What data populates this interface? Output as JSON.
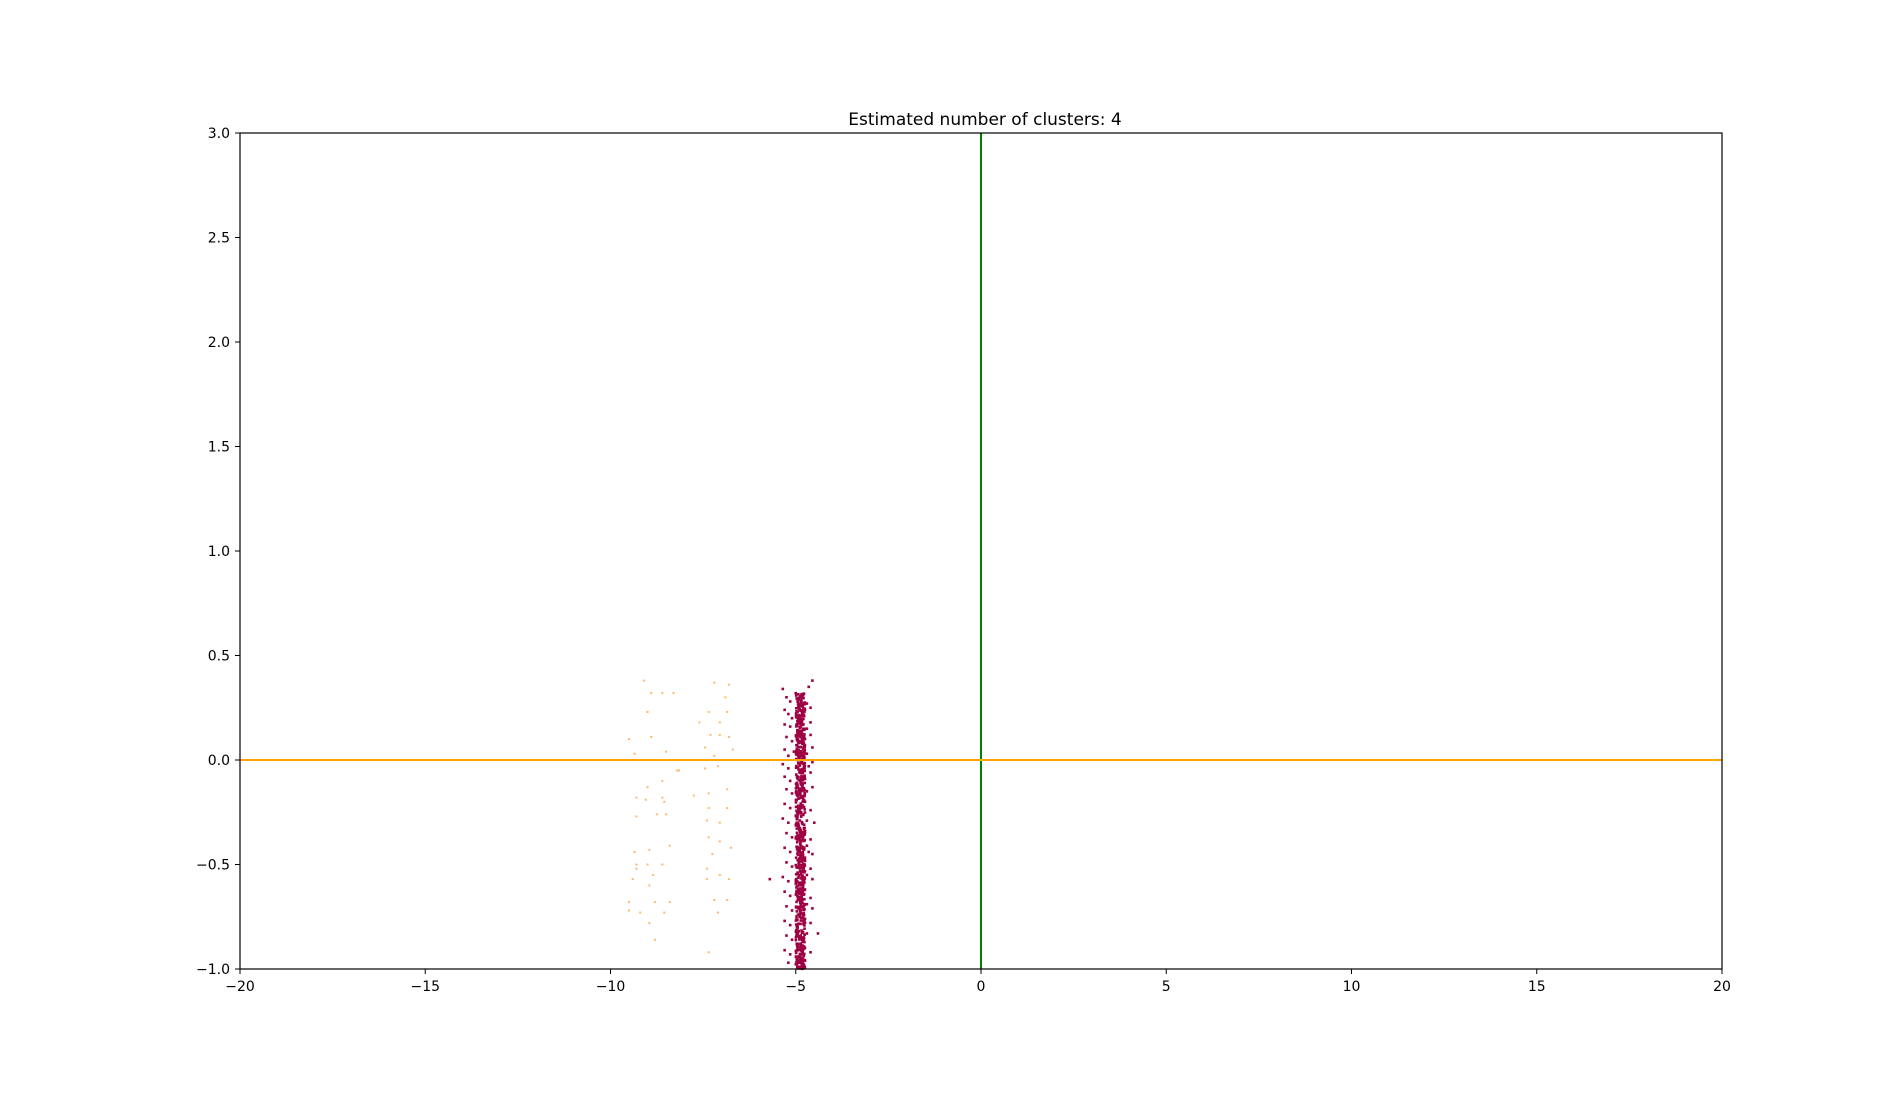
{
  "chart_data": {
    "type": "scatter",
    "title": "Estimated number of clusters: 4",
    "xlabel": "",
    "ylabel": "",
    "xlim": [
      -20,
      20
    ],
    "ylim": [
      -1.0,
      3.0
    ],
    "grid": false,
    "legend": "none",
    "xticks": [
      -20,
      -15,
      -10,
      -5,
      0,
      5,
      10,
      15,
      20
    ],
    "xtick_labels": [
      "−20",
      "−15",
      "−10",
      "−5",
      "0",
      "5",
      "10",
      "15",
      "20"
    ],
    "yticks": [
      -1.0,
      -0.5,
      0.0,
      0.5,
      1.0,
      1.5,
      2.0,
      2.5,
      3.0
    ],
    "ytick_labels": [
      "−1.0",
      "−0.5",
      "0.0",
      "0.5",
      "1.0",
      "1.5",
      "2.0",
      "2.5",
      "3.0"
    ],
    "reference_lines": [
      {
        "orientation": "vertical",
        "x": 0,
        "color": "#008000"
      },
      {
        "orientation": "horizontal",
        "y": 0,
        "color": "#ffa500"
      }
    ],
    "series": [
      {
        "color": "#ffb86b",
        "points": [
          [
            -9.1,
            0.38
          ],
          [
            -8.9,
            0.32
          ],
          [
            -8.6,
            0.32
          ],
          [
            -8.3,
            0.32
          ],
          [
            -9.0,
            0.23
          ],
          [
            -9.5,
            0.1
          ],
          [
            -8.9,
            0.11
          ],
          [
            -9.35,
            0.03
          ],
          [
            -8.5,
            0.04
          ],
          [
            -8.2,
            -0.05
          ],
          [
            -8.6,
            -0.1
          ],
          [
            -9.0,
            -0.13
          ],
          [
            -9.3,
            -0.18
          ],
          [
            -9.05,
            -0.19
          ],
          [
            -8.6,
            -0.18
          ],
          [
            -8.55,
            -0.2
          ],
          [
            -9.3,
            -0.27
          ],
          [
            -8.75,
            -0.26
          ],
          [
            -8.5,
            -0.26
          ],
          [
            -9.35,
            -0.44
          ],
          [
            -8.95,
            -0.43
          ],
          [
            -8.4,
            -0.41
          ],
          [
            -9.3,
            -0.5
          ],
          [
            -9.0,
            -0.5
          ],
          [
            -8.6,
            -0.5
          ],
          [
            -9.4,
            -0.57
          ],
          [
            -8.85,
            -0.55
          ],
          [
            -9.3,
            -0.52
          ],
          [
            -8.95,
            -0.6
          ],
          [
            -9.5,
            -0.68
          ],
          [
            -8.8,
            -0.68
          ],
          [
            -8.4,
            -0.68
          ],
          [
            -9.5,
            -0.72
          ],
          [
            -9.2,
            -0.73
          ],
          [
            -8.95,
            -0.78
          ],
          [
            -8.55,
            -0.73
          ],
          [
            -8.8,
            -0.86
          ],
          [
            -7.2,
            0.37
          ],
          [
            -6.8,
            0.36
          ],
          [
            -6.9,
            0.3
          ],
          [
            -7.35,
            0.23
          ],
          [
            -6.85,
            0.23
          ],
          [
            -7.6,
            0.18
          ],
          [
            -7.05,
            0.18
          ],
          [
            -7.3,
            0.12
          ],
          [
            -7.05,
            0.12
          ],
          [
            -6.8,
            0.11
          ],
          [
            -7.45,
            0.06
          ],
          [
            -6.7,
            0.05
          ],
          [
            -7.2,
            0.02
          ],
          [
            -7.1,
            -0.03
          ],
          [
            -7.45,
            -0.04
          ],
          [
            -8.15,
            -0.05
          ],
          [
            -6.85,
            -0.14
          ],
          [
            -7.75,
            -0.17
          ],
          [
            -7.35,
            -0.16
          ],
          [
            -7.35,
            -0.23
          ],
          [
            -6.85,
            -0.23
          ],
          [
            -7.4,
            -0.29
          ],
          [
            -7.05,
            -0.3
          ],
          [
            -7.35,
            -0.37
          ],
          [
            -7.05,
            -0.39
          ],
          [
            -6.75,
            -0.42
          ],
          [
            -7.25,
            -0.45
          ],
          [
            -7.4,
            -0.57
          ],
          [
            -7.05,
            -0.55
          ],
          [
            -6.8,
            -0.57
          ],
          [
            -7.4,
            -0.52
          ],
          [
            -7.2,
            -0.67
          ],
          [
            -6.85,
            -0.67
          ],
          [
            -7.1,
            -0.73
          ],
          [
            -7.35,
            -0.92
          ]
        ]
      },
      {
        "color": "#9e0142",
        "points": [
          [
            -5.35,
            0.34
          ],
          [
            -5.25,
            0.3
          ],
          [
            -5.15,
            0.28
          ],
          [
            -5.0,
            0.32
          ],
          [
            -4.8,
            0.31
          ],
          [
            -4.65,
            0.35
          ],
          [
            -4.55,
            0.38
          ],
          [
            -4.7,
            0.27
          ],
          [
            -5.3,
            0.24
          ],
          [
            -5.2,
            0.22
          ],
          [
            -5.1,
            0.2
          ],
          [
            -4.95,
            0.23
          ],
          [
            -4.75,
            0.24
          ],
          [
            -4.6,
            0.25
          ],
          [
            -5.3,
            0.17
          ],
          [
            -5.15,
            0.16
          ],
          [
            -4.85,
            0.18
          ],
          [
            -4.7,
            0.15
          ],
          [
            -4.6,
            0.18
          ],
          [
            -5.25,
            0.11
          ],
          [
            -5.1,
            0.09
          ],
          [
            -4.75,
            0.1
          ],
          [
            -4.6,
            0.12
          ],
          [
            -5.3,
            0.05
          ],
          [
            -5.2,
            0.02
          ],
          [
            -5.05,
            0.04
          ],
          [
            -4.7,
            0.03
          ],
          [
            -4.55,
            0.06
          ],
          [
            -5.35,
            -0.02
          ],
          [
            -5.2,
            -0.04
          ],
          [
            -4.65,
            -0.03
          ],
          [
            -4.55,
            -0.01
          ],
          [
            -5.3,
            -0.08
          ],
          [
            -5.15,
            -0.1
          ],
          [
            -4.75,
            -0.09
          ],
          [
            -4.6,
            -0.06
          ],
          [
            -5.25,
            -0.14
          ],
          [
            -5.1,
            -0.16
          ],
          [
            -4.7,
            -0.15
          ],
          [
            -4.55,
            -0.13
          ],
          [
            -5.3,
            -0.21
          ],
          [
            -5.15,
            -0.23
          ],
          [
            -4.75,
            -0.2
          ],
          [
            -4.6,
            -0.24
          ],
          [
            -5.35,
            -0.28
          ],
          [
            -5.2,
            -0.3
          ],
          [
            -4.7,
            -0.29
          ],
          [
            -4.5,
            -0.3
          ],
          [
            -5.25,
            -0.35
          ],
          [
            -5.1,
            -0.37
          ],
          [
            -4.75,
            -0.34
          ],
          [
            -4.6,
            -0.38
          ],
          [
            -5.3,
            -0.42
          ],
          [
            -5.15,
            -0.44
          ],
          [
            -4.7,
            -0.41
          ],
          [
            -4.55,
            -0.45
          ],
          [
            -5.25,
            -0.49
          ],
          [
            -5.1,
            -0.51
          ],
          [
            -4.75,
            -0.48
          ],
          [
            -4.6,
            -0.52
          ],
          [
            -5.35,
            -0.56
          ],
          [
            -5.2,
            -0.58
          ],
          [
            -5.7,
            -0.57
          ],
          [
            -4.7,
            -0.55
          ],
          [
            -4.55,
            -0.57
          ],
          [
            -5.3,
            -0.63
          ],
          [
            -5.15,
            -0.65
          ],
          [
            -4.75,
            -0.62
          ],
          [
            -4.6,
            -0.66
          ],
          [
            -5.25,
            -0.7
          ],
          [
            -5.1,
            -0.72
          ],
          [
            -4.7,
            -0.69
          ],
          [
            -4.55,
            -0.71
          ],
          [
            -5.3,
            -0.77
          ],
          [
            -5.15,
            -0.79
          ],
          [
            -4.75,
            -0.76
          ],
          [
            -4.6,
            -0.78
          ],
          [
            -5.25,
            -0.84
          ],
          [
            -5.1,
            -0.86
          ],
          [
            -4.7,
            -0.83
          ],
          [
            -4.4,
            -0.83
          ],
          [
            -5.3,
            -0.91
          ],
          [
            -5.15,
            -0.93
          ],
          [
            -4.75,
            -0.9
          ],
          [
            -4.6,
            -0.92
          ],
          [
            -5.2,
            -0.97
          ],
          [
            -4.75,
            -0.96
          ],
          [
            -4.8,
            0.21
          ],
          [
            -4.8,
            -0.26
          ],
          [
            -4.65,
            -0.44
          ]
        ]
      },
      {
        "color": "#9e0142",
        "x_range": [
          -5.0,
          -4.75
        ],
        "y_range": [
          -1.0,
          0.32
        ],
        "count": 750
      }
    ]
  }
}
